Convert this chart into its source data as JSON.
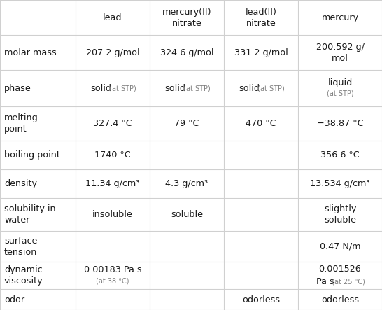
{
  "col_headers": [
    "",
    "lead",
    "mercury(II)\nnitrate",
    "lead(II)\nnitrate",
    "mercury"
  ],
  "rows": [
    {
      "label": "molar mass",
      "cells": [
        {
          "type": "plain",
          "text": "207.2 g/mol"
        },
        {
          "type": "plain",
          "text": "324.6 g/mol"
        },
        {
          "type": "plain",
          "text": "331.2 g/mol"
        },
        {
          "type": "plain",
          "text": "200.592 g/\nmol"
        }
      ]
    },
    {
      "label": "phase",
      "cells": [
        {
          "type": "main_small_inline",
          "main": "solid",
          "small": " (at STP)"
        },
        {
          "type": "main_small_inline",
          "main": "solid",
          "small": " (at STP)"
        },
        {
          "type": "main_small_inline",
          "main": "solid",
          "small": " (at STP)"
        },
        {
          "type": "main_small_stacked",
          "main": "liquid",
          "small": "(at STP)"
        }
      ]
    },
    {
      "label": "melting\npoint",
      "cells": [
        {
          "type": "plain",
          "text": "327.4 °C"
        },
        {
          "type": "plain",
          "text": "79 °C"
        },
        {
          "type": "plain",
          "text": "470 °C"
        },
        {
          "type": "plain",
          "text": "−38.87 °C"
        }
      ]
    },
    {
      "label": "boiling point",
      "cells": [
        {
          "type": "plain",
          "text": "1740 °C"
        },
        {
          "type": "empty"
        },
        {
          "type": "empty"
        },
        {
          "type": "plain",
          "text": "356.6 °C"
        }
      ]
    },
    {
      "label": "density",
      "cells": [
        {
          "type": "plain",
          "text": "11.34 g/cm³"
        },
        {
          "type": "plain",
          "text": "4.3 g/cm³"
        },
        {
          "type": "empty"
        },
        {
          "type": "plain",
          "text": "13.534 g/cm³"
        }
      ]
    },
    {
      "label": "solubility in\nwater",
      "cells": [
        {
          "type": "plain",
          "text": "insoluble"
        },
        {
          "type": "plain",
          "text": "soluble"
        },
        {
          "type": "empty"
        },
        {
          "type": "plain",
          "text": "slightly\nsoluble"
        }
      ]
    },
    {
      "label": "surface\ntension",
      "cells": [
        {
          "type": "empty"
        },
        {
          "type": "empty"
        },
        {
          "type": "empty"
        },
        {
          "type": "plain",
          "text": "0.47 N/m"
        }
      ]
    },
    {
      "label": "dynamic\nviscosity",
      "cells": [
        {
          "type": "main_small_stacked",
          "main": "0.00183 Pa s",
          "small": "(at 38 °C)"
        },
        {
          "type": "empty"
        },
        {
          "type": "empty"
        },
        {
          "type": "visc_hg",
          "line1": "0.001526",
          "line2main": "Pa s",
          "line2small": " (at 25 °C)"
        }
      ]
    },
    {
      "label": "odor",
      "cells": [
        {
          "type": "empty"
        },
        {
          "type": "empty"
        },
        {
          "type": "plain",
          "text": "odorless"
        },
        {
          "type": "plain",
          "text": "odorless"
        }
      ]
    }
  ],
  "bg_color": "#ffffff",
  "grid_color": "#d0d0d0",
  "text_color": "#1a1a1a",
  "small_color": "#808080",
  "main_fs": 9.2,
  "small_fs": 7.0,
  "label_fs": 9.2,
  "header_fs": 9.2
}
